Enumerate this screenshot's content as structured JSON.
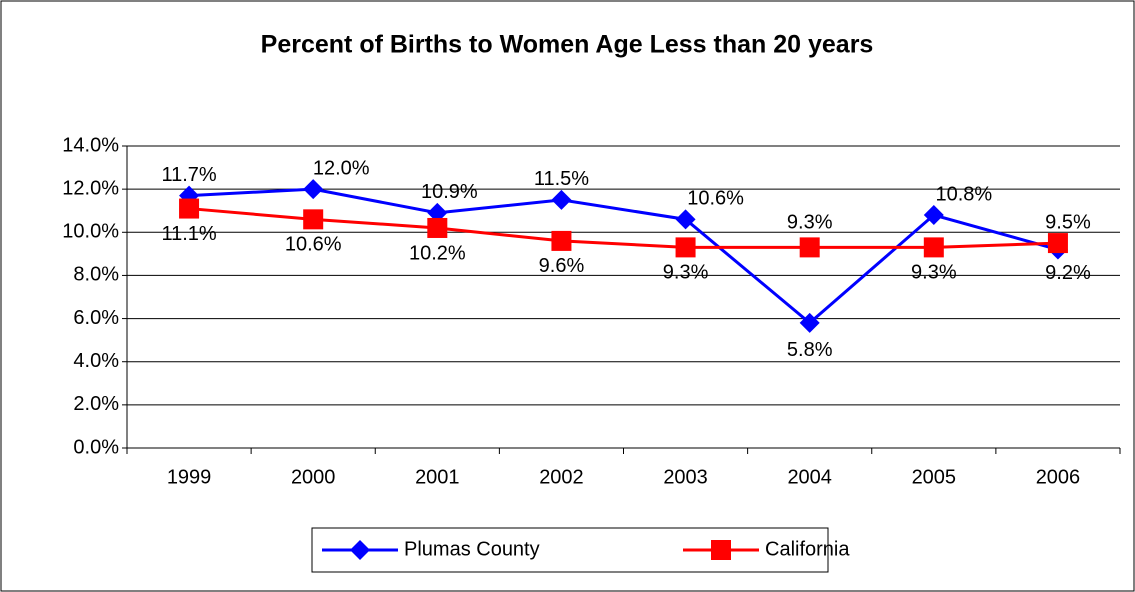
{
  "chart_data": {
    "type": "line",
    "title": "Percent of Births to Women Age Less than 20 years",
    "categories": [
      "1999",
      "2000",
      "2001",
      "2002",
      "2003",
      "2004",
      "2005",
      "2006"
    ],
    "series": [
      {
        "name": "Plumas County",
        "color": "#0000ff",
        "marker": "diamond",
        "values": [
          11.7,
          12.0,
          10.9,
          11.5,
          10.6,
          5.8,
          10.8,
          9.2
        ],
        "value_labels": [
          "11.7%",
          "12.0%",
          "10.9%",
          "11.5%",
          "10.6%",
          "5.8%",
          "10.8%",
          "9.2%"
        ]
      },
      {
        "name": "California",
        "color": "#ff0000",
        "marker": "square",
        "values": [
          11.1,
          10.6,
          10.2,
          9.6,
          9.3,
          9.3,
          9.3,
          9.5
        ],
        "value_labels": [
          "11.1%",
          "10.6%",
          "10.2%",
          "9.6%",
          "9.3%",
          "9.3%",
          "9.3%",
          "9.5%"
        ]
      }
    ],
    "ylim": [
      0,
      14
    ],
    "yticks": [
      {
        "value": 0,
        "label": "0.0%"
      },
      {
        "value": 2,
        "label": "2.0%"
      },
      {
        "value": 4,
        "label": "4.0%"
      },
      {
        "value": 6,
        "label": "6.0%"
      },
      {
        "value": 8,
        "label": "8.0%"
      },
      {
        "value": 10,
        "label": "10.0%"
      },
      {
        "value": 12,
        "label": "12.0%"
      },
      {
        "value": 14,
        "label": "14.0%"
      }
    ],
    "grid": true,
    "legend": "bottom"
  }
}
